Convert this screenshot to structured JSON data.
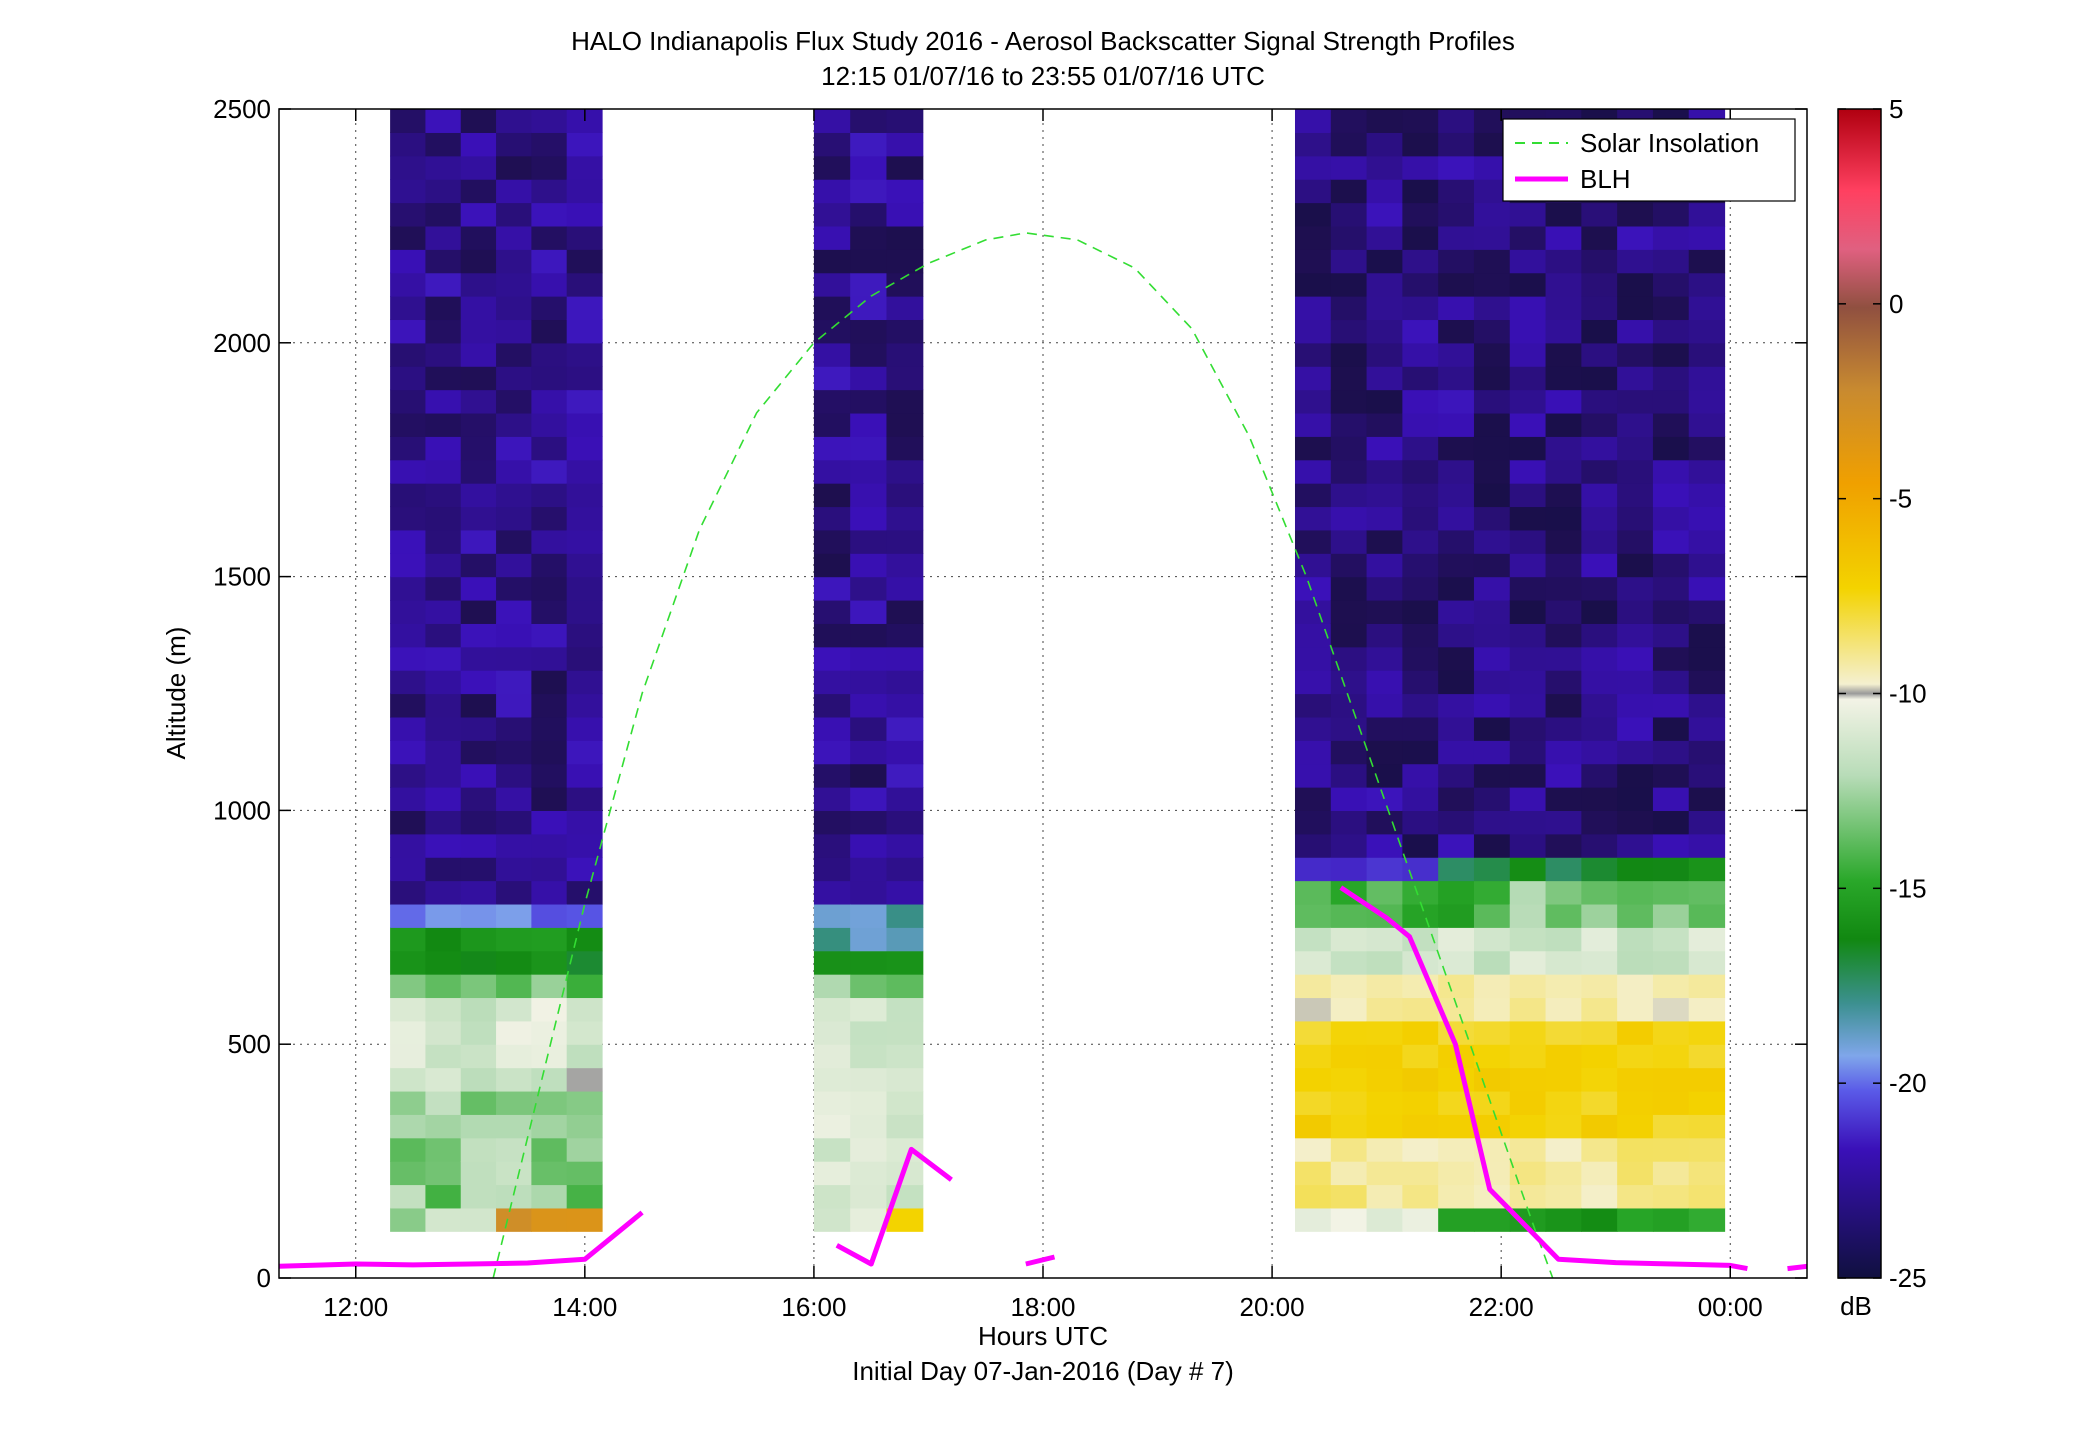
{
  "chart_data": {
    "type": "heatmap",
    "title": "HALO Indianapolis Flux Study 2016 - Aerosol Backscatter Signal Strength Profiles",
    "subtitle": "12:15 01/07/16 to 23:55 01/07/16  UTC",
    "xlabel": "Hours UTC",
    "xlabel2": "Initial Day 07-Jan-2016 (Day # 7)",
    "ylabel": "Altitude (m)",
    "xlim": [
      11.33,
      24.67
    ],
    "ylim": [
      0,
      2500
    ],
    "grid": true,
    "x_ticks": [
      12,
      14,
      16,
      18,
      20,
      22,
      24
    ],
    "x_tick_labels": [
      "12:00",
      "14:00",
      "16:00",
      "18:00",
      "20:00",
      "22:00",
      "00:00"
    ],
    "y_ticks": [
      0,
      500,
      1000,
      1500,
      2000,
      2500
    ],
    "y_tick_labels": [
      "0",
      "500",
      "1000",
      "1500",
      "2000",
      "2500"
    ],
    "legend": {
      "placement": "top-right",
      "entries": [
        {
          "label": "Solar Insolation",
          "color": "#33dd33",
          "style": "dashed"
        },
        {
          "label": "BLH",
          "color": "#ff00ff",
          "style": "solid"
        }
      ]
    },
    "colorbar": {
      "label": "dB",
      "range": [
        -25,
        5
      ],
      "ticks": [
        5,
        0,
        -5,
        -10,
        -15,
        -20,
        -25
      ],
      "tick_labels": [
        "5",
        "0",
        "-5",
        "-10",
        "-15",
        "-20",
        "-25"
      ]
    },
    "heatmap_blocks": [
      {
        "x_start": 12.3,
        "x_end": 14.15,
        "y_bottom": 100,
        "y_top": 2500,
        "profile": "morning"
      },
      {
        "x_start": 16.0,
        "x_end": 16.95,
        "y_bottom": 100,
        "y_top": 2500,
        "profile": "midday"
      },
      {
        "x_start": 20.2,
        "x_end": 23.95,
        "y_bottom": 100,
        "y_top": 2500,
        "profile": "evening"
      }
    ],
    "series": [
      {
        "name": "Solar Insolation",
        "points": [
          [
            13.2,
            0
          ],
          [
            13.6,
            400
          ],
          [
            14.0,
            800
          ],
          [
            14.5,
            1250
          ],
          [
            15.0,
            1600
          ],
          [
            15.5,
            1850
          ],
          [
            16.0,
            2000
          ],
          [
            16.5,
            2100
          ],
          [
            17.0,
            2170
          ],
          [
            17.5,
            2220
          ],
          [
            17.85,
            2235
          ],
          [
            18.3,
            2220
          ],
          [
            18.8,
            2160
          ],
          [
            19.3,
            2030
          ],
          [
            19.8,
            1800
          ],
          [
            20.3,
            1500
          ],
          [
            20.8,
            1150
          ],
          [
            21.3,
            800
          ],
          [
            21.8,
            450
          ],
          [
            22.3,
            100
          ],
          [
            22.45,
            0
          ]
        ]
      },
      {
        "name": "BLH",
        "segments": [
          [
            [
              11.33,
              25
            ],
            [
              12.0,
              30
            ],
            [
              12.5,
              28
            ],
            [
              13.0,
              30
            ],
            [
              13.5,
              32
            ],
            [
              14.0,
              40
            ],
            [
              14.15,
              70
            ],
            [
              14.5,
              140
            ]
          ],
          [
            [
              16.2,
              70
            ],
            [
              16.5,
              30
            ],
            [
              16.85,
              275
            ],
            [
              17.2,
              210
            ]
          ],
          [
            [
              17.85,
              30
            ],
            [
              18.1,
              45
            ]
          ],
          [
            [
              20.6,
              835
            ],
            [
              21.0,
              770
            ],
            [
              21.2,
              730
            ],
            [
              21.6,
              500
            ],
            [
              21.9,
              190
            ],
            [
              22.3,
              90
            ],
            [
              22.5,
              40
            ],
            [
              23.0,
              33
            ],
            [
              23.5,
              30
            ],
            [
              24.0,
              27
            ],
            [
              24.15,
              20
            ]
          ],
          [
            [
              24.5,
              20
            ],
            [
              24.67,
              25
            ]
          ]
        ]
      }
    ]
  }
}
